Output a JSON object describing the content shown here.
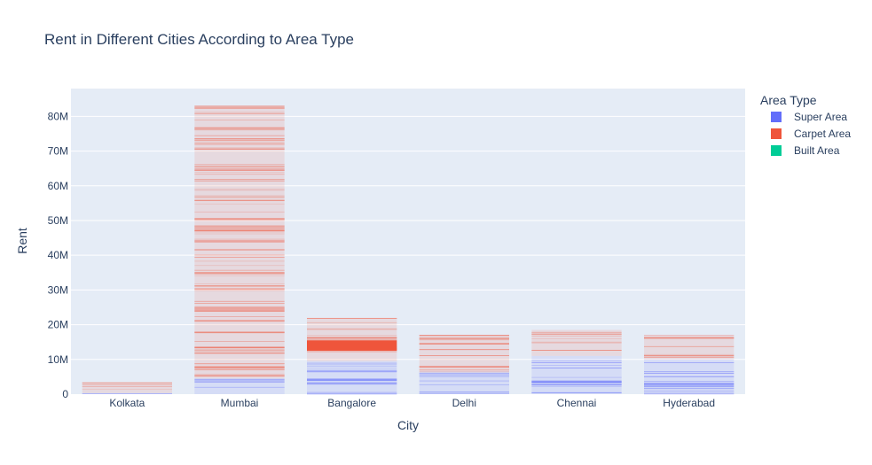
{
  "chart_data": {
    "type": "bar",
    "barmode": "stack",
    "title": "Rent in Different Cities According to Area Type",
    "xlabel": "City",
    "ylabel": "Rent",
    "categories": [
      "Kolkata",
      "Mumbai",
      "Bangalore",
      "Delhi",
      "Chennai",
      "Hyderabad"
    ],
    "ylim": [
      0,
      88000000
    ],
    "yticks": [
      0,
      10000000,
      20000000,
      30000000,
      40000000,
      50000000,
      60000000,
      70000000,
      80000000
    ],
    "ytick_labels": [
      "0",
      "10M",
      "20M",
      "30M",
      "40M",
      "50M",
      "60M",
      "70M",
      "80M"
    ],
    "grid": true,
    "legend_title": "Area Type",
    "legend_position": "top-right",
    "series": [
      {
        "name": "Super Area",
        "color": "#636efa",
        "values": [
          300000,
          4500000,
          9500000,
          6500000,
          11000000,
          10000000
        ]
      },
      {
        "name": "Carpet Area",
        "color": "#ef553b",
        "values": [
          3200000,
          78500000,
          12500000,
          10500000,
          7500000,
          7000000
        ]
      },
      {
        "name": "Built Area",
        "color": "#00cc96",
        "values": [
          0,
          0,
          0,
          0,
          0,
          0
        ]
      }
    ],
    "background_color": "#e5ecf6"
  }
}
